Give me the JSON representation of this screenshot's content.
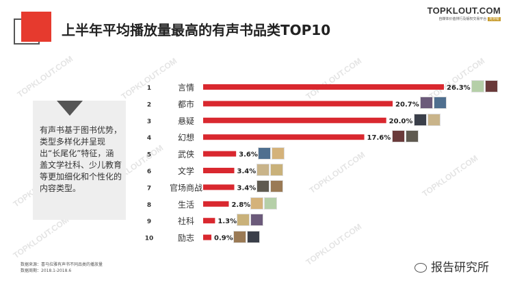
{
  "header": {
    "title": "上半年平均播放量最高的有声书品类TOP10",
    "brand_name": "TOPKLOUT.COM",
    "brand_sub_highlight": "克劳锐",
    "brand_sub_text": "自媒体价值排行及版权交易平台"
  },
  "note": {
    "text": "有声书基于图书优势，类型多样化并呈现出“长尾化”特征，涵盖文学社科、少儿教育等更加细化和个性化的内容类型。"
  },
  "footer": {
    "source": "数据来源：喜马拉雅有声书不同品类的播放量",
    "period": "数据周期：2018.1-2018.6"
  },
  "wechat_label": "报告研究所",
  "watermark_text": "TOPKLOUT.COM",
  "colors": {
    "accent": "#e63a2e",
    "bar": "#d9282f"
  },
  "chart_data": {
    "type": "bar",
    "orientation": "horizontal",
    "title": "上半年平均播放量最高的有声书品类TOP10",
    "ranks": [
      "1",
      "2",
      "3",
      "4",
      "5",
      "6",
      "7",
      "8",
      "9",
      "10"
    ],
    "categories": [
      "言情",
      "都市",
      "悬疑",
      "幻想",
      "武侠",
      "文学",
      "官场商战",
      "生活",
      "社科",
      "励志"
    ],
    "values": [
      26.3,
      20.7,
      20.0,
      17.6,
      3.6,
      3.4,
      3.4,
      2.8,
      1.3,
      0.9
    ],
    "value_labels": [
      "26.3%",
      "20.7%",
      "20.0%",
      "17.6%",
      "3.6%",
      "3.4%",
      "3.4%",
      "2.8%",
      "1.3%",
      "0.9%"
    ],
    "unit": "%",
    "xlim": [
      0,
      26.3
    ],
    "grid": false,
    "legend": "none"
  }
}
